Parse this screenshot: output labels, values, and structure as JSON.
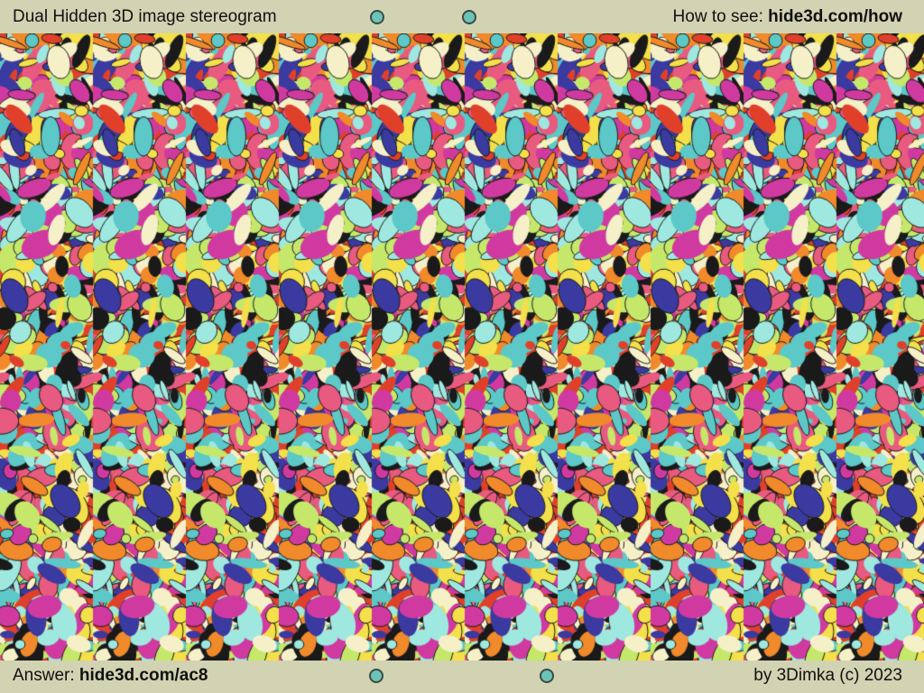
{
  "header": {
    "title": "Dual Hidden 3D image stereogram",
    "howto_label": "How to see:",
    "howto_link": "hide3d.com/how"
  },
  "footer": {
    "answer_label": "Answer:",
    "answer_link": "hide3d.com/ac8",
    "credit": "by 3Dimka (c) 2023"
  },
  "image": {
    "type": "autostereogram",
    "palette": [
      "#e0402a",
      "#f08a2a",
      "#f3e04a",
      "#c6e86a",
      "#5cc8c8",
      "#9ee8e0",
      "#d03aa0",
      "#3a3aa0",
      "#1a1a1a",
      "#f5f0c8",
      "#e85a80"
    ]
  },
  "colors": {
    "bar_background": "#d1d3b2",
    "dot_fill": "#6cc4b8"
  }
}
